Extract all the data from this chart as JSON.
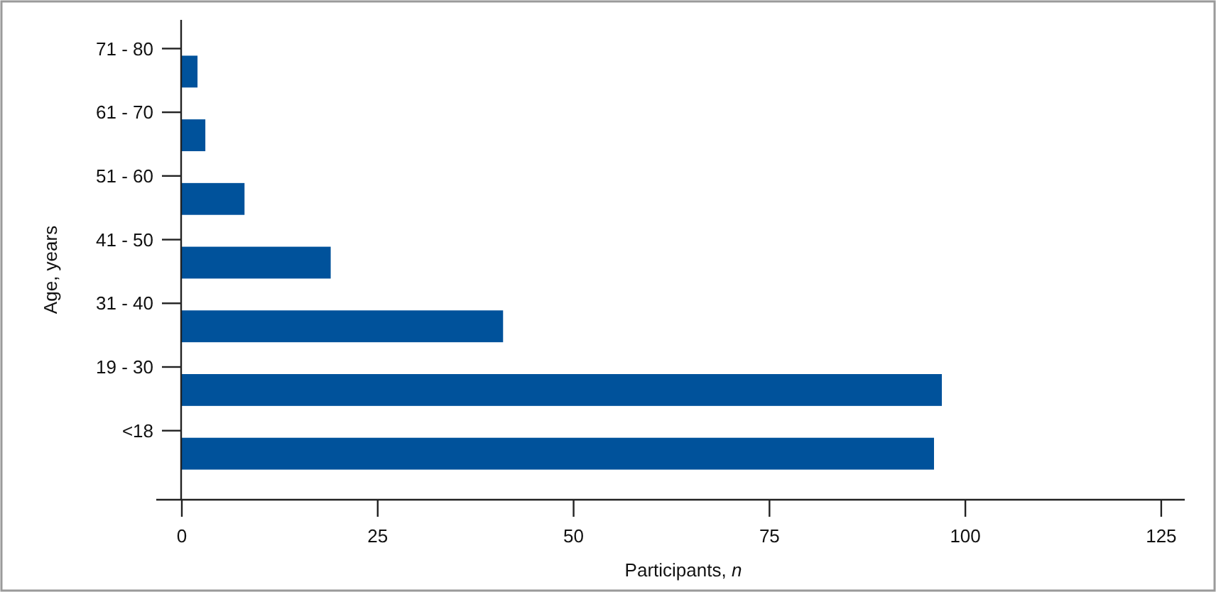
{
  "chart_data": {
    "type": "bar",
    "orientation": "horizontal",
    "categories": [
      "71 - 80",
      "61 - 70",
      "51 - 60",
      "41 - 50",
      "31 - 40",
      "19 - 30",
      "<18"
    ],
    "values": [
      2,
      3,
      8,
      19,
      41,
      97,
      96
    ],
    "color": "#00529b",
    "xlim": [
      0,
      128
    ],
    "xticks": [
      0,
      25,
      50,
      75,
      100,
      125
    ],
    "xlabel": "Participants, $_{}$n",
    "ylabel": "Age, years",
    "grid": false
  }
}
